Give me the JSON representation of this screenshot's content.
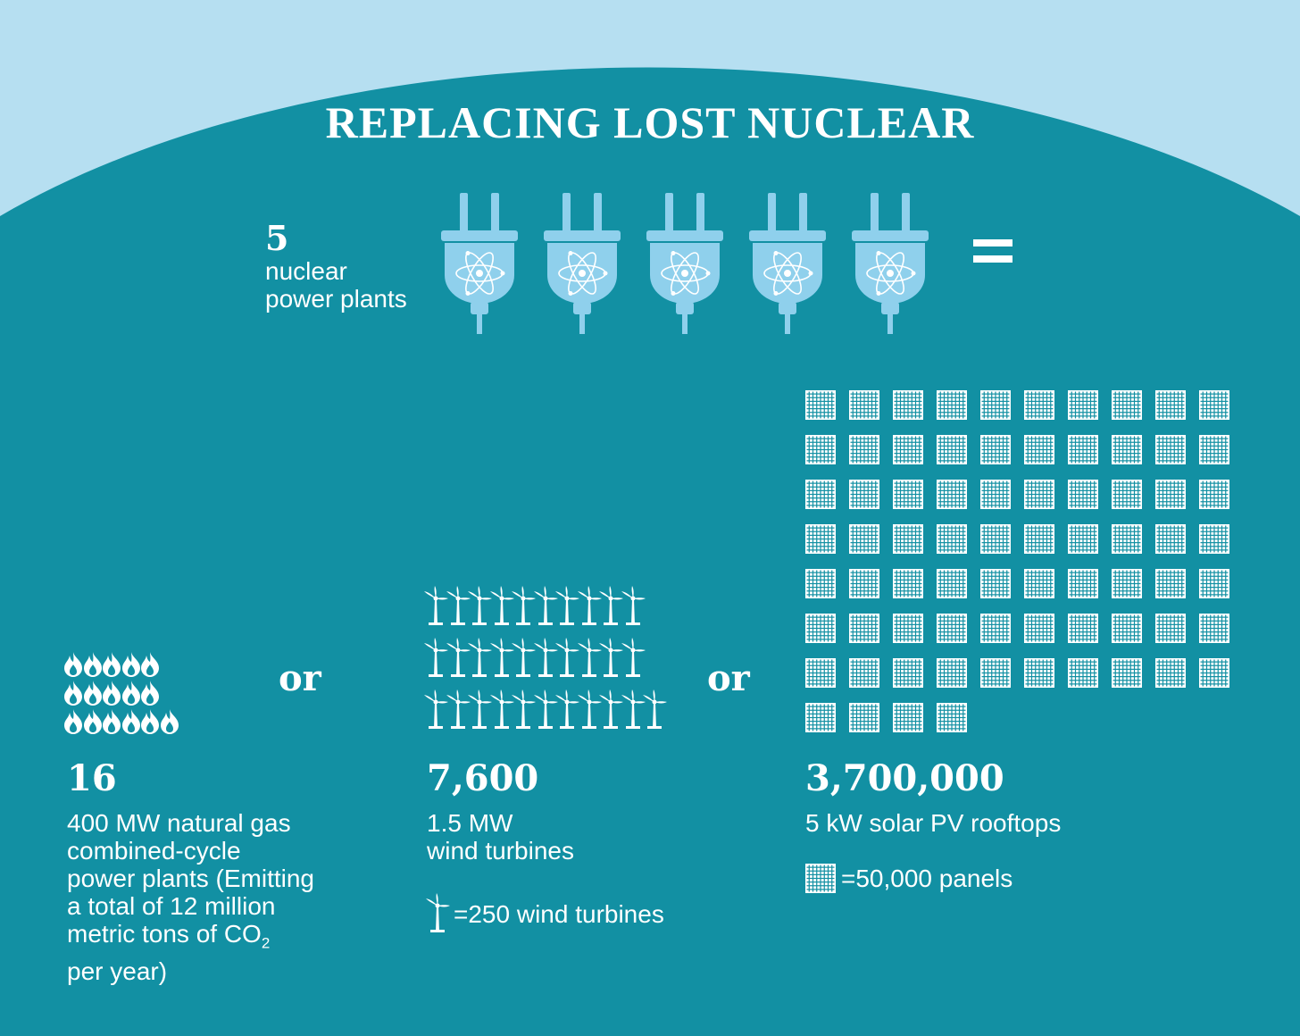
{
  "title": "REPLACING LOST NUCLEAR",
  "colors": {
    "sky": "#b6dff1",
    "teal": "#1290a3",
    "icon_light": "#8fd0ec",
    "white": "#ffffff"
  },
  "nuclear": {
    "count": "5",
    "label_lines": [
      "nuclear",
      "power plants"
    ],
    "icon_name": "nuclear-plug-icon",
    "icon_count": 5
  },
  "equals": "=",
  "or_label": "or",
  "gas": {
    "count": "16",
    "description_lines": [
      "400 MW natural gas",
      "combined-cycle",
      "power plants (Emitting",
      "a total of 12 million",
      "metric tons of CO",
      "per year)"
    ],
    "subscript": "2",
    "icon_name": "flame-icon",
    "icon_count": 16
  },
  "wind": {
    "count": "7,600",
    "description_lines": [
      "1.5 MW",
      "wind turbines"
    ],
    "legend": "=250 wind turbines",
    "icon_name": "wind-turbine-icon",
    "icon_count": 31
  },
  "solar": {
    "count": "3,700,000",
    "description": "5 kW solar PV rooftops",
    "legend": "=50,000 panels",
    "icon_name": "solar-panel-icon",
    "icon_count": 74
  }
}
